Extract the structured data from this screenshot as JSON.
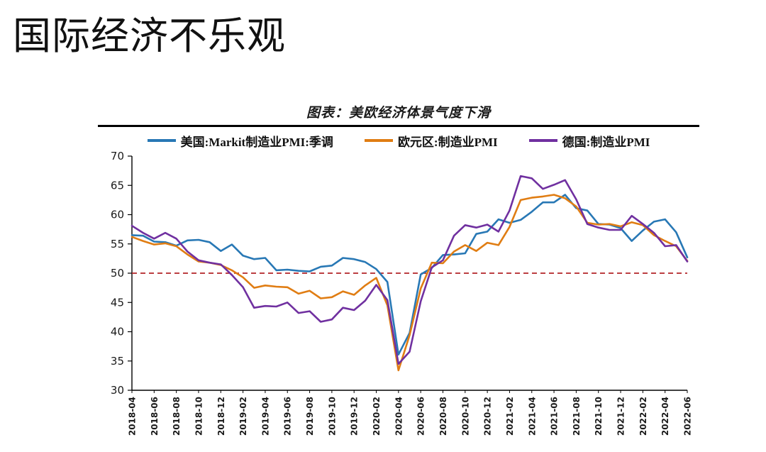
{
  "page_title": "国际经济不乐观",
  "chart_data": {
    "type": "line",
    "title": "图表：美欧经济体景气度下滑",
    "xlabel": "",
    "ylabel": "",
    "ylim": [
      30,
      70
    ],
    "ytick_step": 5,
    "grid": false,
    "legend_position": "top",
    "x_label_rotation": 90,
    "x_label_shown_every": 2,
    "reference_line": {
      "value": 50,
      "color": "#b22328",
      "style": "dashed"
    },
    "x": [
      "2018-04",
      "2018-05",
      "2018-06",
      "2018-07",
      "2018-08",
      "2018-09",
      "2018-10",
      "2018-11",
      "2018-12",
      "2019-01",
      "2019-02",
      "2019-03",
      "2019-04",
      "2019-05",
      "2019-06",
      "2019-07",
      "2019-08",
      "2019-09",
      "2019-10",
      "2019-11",
      "2019-12",
      "2020-01",
      "2020-02",
      "2020-03",
      "2020-04",
      "2020-05",
      "2020-06",
      "2020-07",
      "2020-08",
      "2020-09",
      "2020-10",
      "2020-11",
      "2020-12",
      "2021-01",
      "2021-02",
      "2021-03",
      "2021-04",
      "2021-05",
      "2021-06",
      "2021-07",
      "2021-08",
      "2021-09",
      "2021-10",
      "2021-11",
      "2021-12",
      "2022-01",
      "2022-02",
      "2022-03",
      "2022-04",
      "2022-05",
      "2022-06"
    ],
    "series": [
      {
        "name": "美国:Markit制造业PMI:季调",
        "color": "#2878b5",
        "values": [
          56.5,
          56.4,
          55.4,
          55.3,
          54.7,
          55.6,
          55.7,
          55.3,
          53.8,
          54.9,
          53.0,
          52.4,
          52.6,
          50.5,
          50.6,
          50.4,
          50.3,
          51.1,
          51.3,
          52.6,
          52.4,
          51.9,
          50.7,
          48.5,
          36.1,
          39.8,
          49.8,
          50.9,
          53.1,
          53.2,
          53.4,
          56.7,
          57.1,
          59.2,
          58.6,
          59.1,
          60.5,
          62.1,
          62.1,
          63.4,
          61.1,
          60.7,
          58.4,
          58.3,
          57.7,
          55.5,
          57.3,
          58.8,
          59.2,
          57.0,
          52.7
        ]
      },
      {
        "name": "欧元区:制造业PMI",
        "color": "#e07d13",
        "values": [
          56.2,
          55.5,
          54.9,
          55.1,
          54.6,
          53.2,
          52.0,
          51.8,
          51.4,
          50.5,
          49.3,
          47.5,
          47.9,
          47.7,
          47.6,
          46.5,
          47.0,
          45.7,
          45.9,
          46.9,
          46.3,
          47.9,
          49.2,
          44.5,
          33.4,
          39.4,
          47.4,
          51.8,
          51.7,
          53.7,
          54.8,
          53.8,
          55.2,
          54.8,
          57.9,
          62.5,
          62.9,
          63.1,
          63.4,
          62.8,
          61.4,
          58.6,
          58.3,
          58.4,
          58.0,
          58.7,
          58.2,
          56.5,
          55.5,
          54.6,
          52.1
        ]
      },
      {
        "name": "德国:制造业PMI",
        "color": "#7030a0",
        "values": [
          58.1,
          56.9,
          55.9,
          56.9,
          55.9,
          53.7,
          52.2,
          51.8,
          51.5,
          49.7,
          47.6,
          44.1,
          44.4,
          44.3,
          45.0,
          43.2,
          43.5,
          41.7,
          42.1,
          44.1,
          43.7,
          45.3,
          48.0,
          45.4,
          34.5,
          36.6,
          45.2,
          51.0,
          52.2,
          56.4,
          58.2,
          57.8,
          58.3,
          57.1,
          60.7,
          66.6,
          66.2,
          64.4,
          65.1,
          65.9,
          62.6,
          58.4,
          57.8,
          57.4,
          57.4,
          59.8,
          58.4,
          56.9,
          54.6,
          54.8,
          52.0
        ]
      }
    ]
  }
}
